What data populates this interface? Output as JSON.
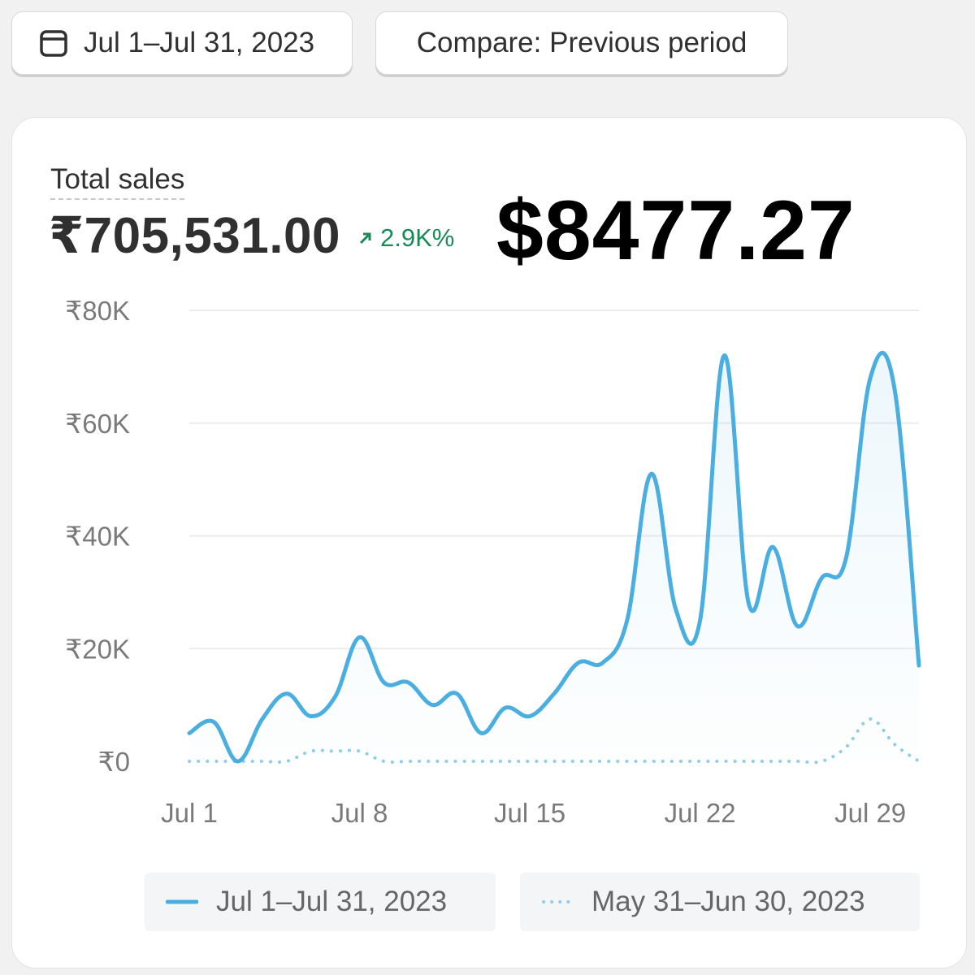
{
  "toolbar": {
    "date_range_label": "Jul 1–Jul 31, 2023",
    "calendar_icon": "calendar-icon",
    "compare_label": "Compare: Previous period"
  },
  "metric": {
    "title": "Total sales",
    "value": "₹705,531.00",
    "change": "2.9K%",
    "change_icon": "arrow-up-right-icon",
    "change_color": "#1a8a5a"
  },
  "overlay_text": "$8477.27",
  "colors": {
    "current_series": "#4aaee0",
    "previous_series": "#8fcdec",
    "gridline": "#ececec",
    "tick_text": "#7a7a7a"
  },
  "chart_data": {
    "type": "line",
    "title": "",
    "xlabel": "",
    "ylabel": "",
    "y_ticks": [
      "₹0",
      "₹20K",
      "₹40K",
      "₹60K",
      "₹80K"
    ],
    "y_tick_values": [
      0,
      20000,
      40000,
      60000,
      80000
    ],
    "ylim": [
      0,
      80000
    ],
    "x_ticks": [
      "Jul 1",
      "Jul 8",
      "Jul 15",
      "Jul 22",
      "Jul 29"
    ],
    "x_tick_days": [
      1,
      8,
      15,
      22,
      29
    ],
    "xlim": [
      1,
      31
    ],
    "grid": true,
    "legend_position": "bottom",
    "series": [
      {
        "name": "Jul 1–Jul 31, 2023",
        "style": "solid",
        "x": [
          1,
          2,
          3,
          4,
          5,
          6,
          7,
          8,
          9,
          10,
          11,
          12,
          13,
          14,
          15,
          16,
          17,
          18,
          19,
          20,
          21,
          22,
          23,
          24,
          25,
          26,
          27,
          28,
          29,
          30,
          31
        ],
        "values": [
          5000,
          7000,
          0,
          7500,
          12000,
          8000,
          11500,
          22000,
          14000,
          14000,
          10000,
          12000,
          5000,
          9500,
          8000,
          12000,
          17500,
          17500,
          25000,
          51000,
          27000,
          25000,
          72000,
          28000,
          38000,
          24000,
          32500,
          36000,
          68000,
          66000,
          17000
        ]
      },
      {
        "name": "May 31–Jun 30, 2023",
        "style": "dotted",
        "x": [
          1,
          2,
          3,
          4,
          5,
          6,
          7,
          8,
          9,
          10,
          11,
          12,
          13,
          14,
          15,
          16,
          17,
          18,
          19,
          20,
          21,
          22,
          23,
          24,
          25,
          26,
          27,
          28,
          29,
          30,
          31
        ],
        "values": [
          0,
          0,
          0,
          0,
          0,
          1800,
          1800,
          1800,
          0,
          0,
          0,
          0,
          0,
          0,
          0,
          0,
          0,
          0,
          0,
          0,
          0,
          0,
          0,
          0,
          0,
          0,
          0,
          2500,
          7500,
          3000,
          0
        ]
      }
    ]
  }
}
